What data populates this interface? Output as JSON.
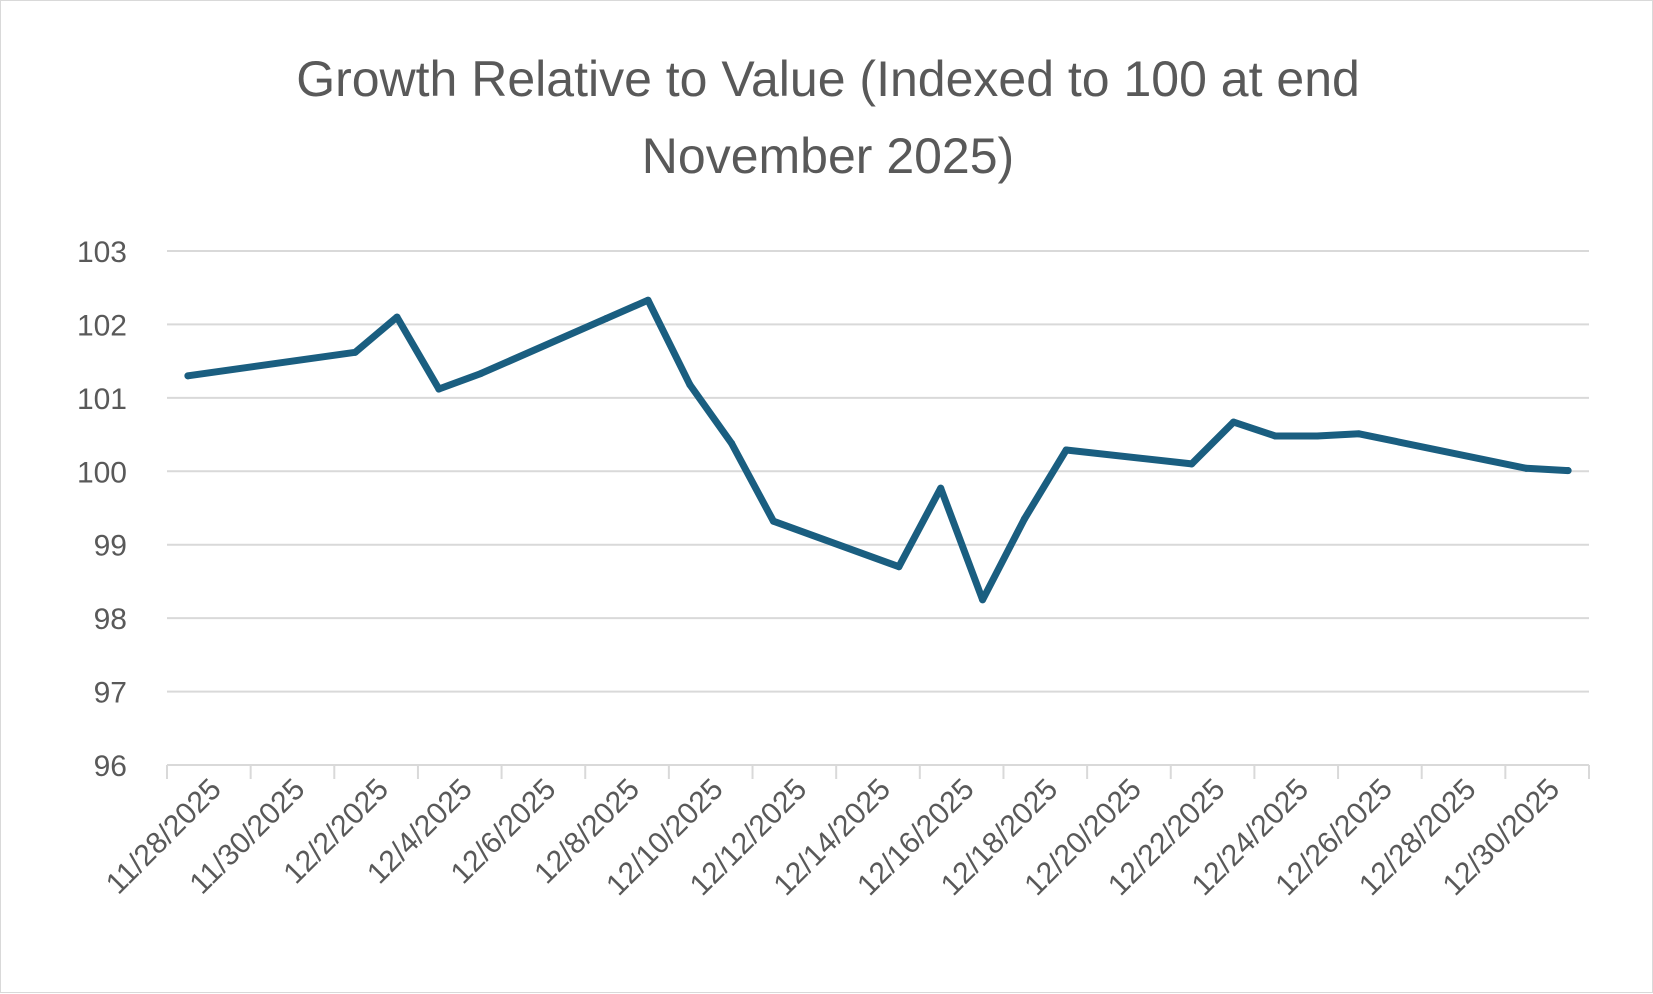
{
  "chart_data": {
    "type": "line",
    "title_lines": [
      "Growth Relative to Value (Indexed to 100 at end",
      "November 2025)"
    ],
    "xlabel": "",
    "ylabel": "",
    "ylim": [
      96,
      103
    ],
    "y_ticks": [
      96,
      97,
      98,
      99,
      100,
      101,
      102,
      103
    ],
    "x_tick_labels": [
      "11/28/2025",
      "11/30/2025",
      "12/2/2025",
      "12/4/2025",
      "12/6/2025",
      "12/8/2025",
      "12/10/2025",
      "12/12/2025",
      "12/14/2025",
      "12/16/2025",
      "12/18/2025",
      "12/20/2025",
      "12/22/2025",
      "12/24/2025",
      "12/26/2025",
      "12/28/2025",
      "12/30/2025"
    ],
    "grid": true,
    "legend": "none",
    "series": [
      {
        "name": "Growth Relative to Value",
        "color": "#1a5e80",
        "x": [
          0.25,
          2.25,
          2.75,
          3.25,
          3.75,
          5.25,
          5.75,
          6.25,
          6.75,
          7.25,
          8.75,
          9.25,
          9.75,
          10.25,
          10.75,
          12.25,
          12.75,
          13.25,
          13.75,
          14.25,
          16.25,
          16.75
        ],
        "values": [
          101.3,
          101.62,
          102.1,
          101.12,
          101.33,
          102.08,
          102.33,
          101.18,
          100.38,
          99.32,
          98.7,
          99.77,
          98.25,
          99.35,
          100.29,
          100.1,
          100.67,
          100.48,
          100.48,
          100.51,
          100.04,
          100.01
        ]
      }
    ]
  }
}
